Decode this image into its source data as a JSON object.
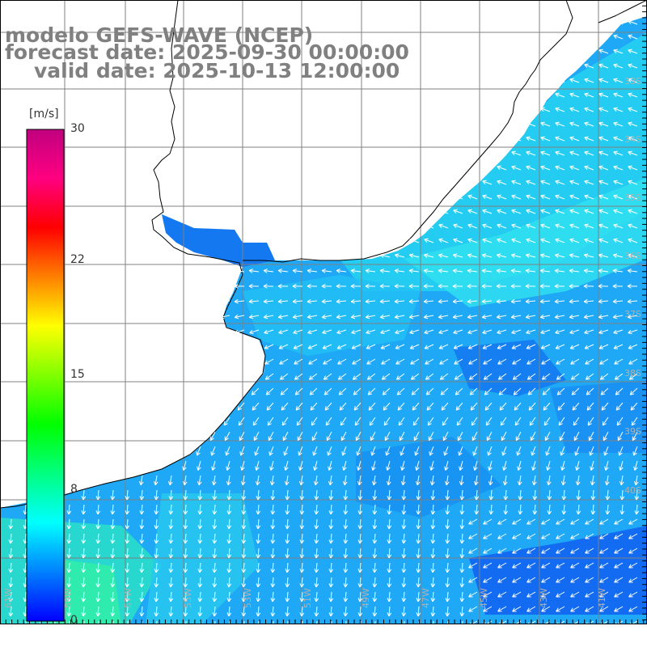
{
  "titles": {
    "model": "modelo GEFS-WAVE (NCEP)",
    "forecast": "forecast date: 2025-09-30 00:00:00",
    "valid": "valid date: 2025-10-13 12:00:00"
  },
  "colorbar": {
    "unit": "[m/s]",
    "min": 0,
    "max": 30,
    "ticks": [
      "0",
      "8",
      "15",
      "22",
      "30"
    ],
    "tick_values": [
      0,
      8,
      15,
      22,
      30
    ],
    "colors": [
      "#0000ff",
      "#0080ff",
      "#00ffff",
      "#00ff80",
      "#00ff00",
      "#80ff00",
      "#ffff00",
      "#ff8000",
      "#ff0000",
      "#ff0080",
      "#c0007f"
    ]
  },
  "map": {
    "quantity": "wind speed and direction",
    "units": "m/s",
    "land_color": "#ffffff",
    "coast_color": "#000000",
    "grid_color": "#808080",
    "vector_color": "#ffffff",
    "lon_labels": [
      "61W",
      "59W",
      "57W",
      "55W",
      "53W",
      "51W",
      "49W",
      "47W",
      "45W",
      "43W",
      "41W"
    ],
    "lat_labels": [
      "33S",
      "34S",
      "35S",
      "36S",
      "37S",
      "38S",
      "39S",
      "40S"
    ]
  }
}
